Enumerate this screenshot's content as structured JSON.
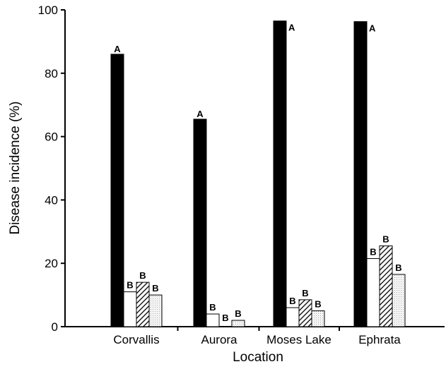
{
  "chart_data": {
    "type": "bar",
    "xlabel": "Location",
    "ylabel": "Disease incidence (%)",
    "ylim": [
      0,
      100
    ],
    "yticks": [
      0,
      20,
      40,
      60,
      80,
      100
    ],
    "grid": false,
    "legend": "none",
    "categories": [
      "Corvallis",
      "Aurora",
      "Moses Lake",
      "Ephrata"
    ],
    "series": [
      {
        "fill": "solid-black",
        "values": [
          86,
          65.5,
          96.5,
          96.3
        ],
        "labels": [
          "A",
          "A",
          "A",
          "A"
        ]
      },
      {
        "fill": "white",
        "values": [
          11,
          4,
          6,
          21.5
        ],
        "labels": [
          "B",
          "B",
          "B",
          "B"
        ]
      },
      {
        "fill": "diagonal-hatch",
        "values": [
          14,
          0,
          8.5,
          25.5
        ],
        "labels": [
          "B",
          "B",
          "B",
          "B"
        ]
      },
      {
        "fill": "light-stipple",
        "values": [
          10,
          2,
          5,
          16.5
        ],
        "labels": [
          "B",
          "B",
          "B",
          "B"
        ]
      }
    ]
  }
}
